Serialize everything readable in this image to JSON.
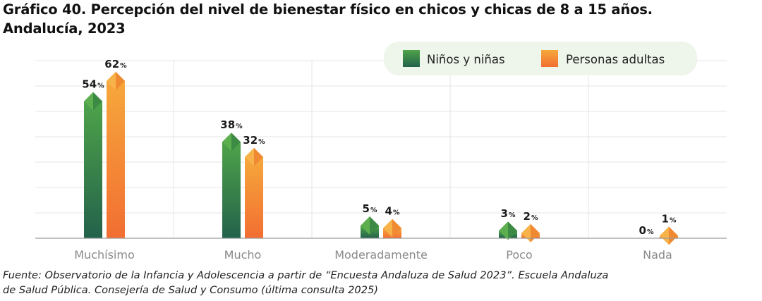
{
  "title": {
    "line1": "Gráfico 40. Percepción del nivel de bienestar físico en chicos y chicas de 8 a 15 años.",
    "line2": "Andalucía, 2023"
  },
  "source": {
    "line1": "Fuente: Observatorio de la Infancia y Adolescencia a partir de “Encuesta Andaluza de Salud 2023”. Escuela Andaluza",
    "line2": "de Salud Pública. Consejería de Salud y Consumo (última consulta 2025)"
  },
  "colors": {
    "series1_top": "#4fa34a",
    "series1_bottom": "#23624b",
    "series1_cap_light": "#5cae4f",
    "series1_cap_dark": "#3d8a44",
    "series2_top": "#f6a83c",
    "series2_bottom": "#f26e32",
    "series2_cap_light": "#f8b24a",
    "series2_cap_dark": "#ef8a33",
    "legend_bg": "#eef5ea",
    "grid": "#e6e6e6",
    "axis": "#9a9a9a",
    "tick_text": "#8a8a8a"
  },
  "chart_data": {
    "type": "bar",
    "title": "Gráfico 40. Percepción del nivel de bienestar físico en chicos y chicas de 8 a 15 años. Andalucía, 2023",
    "xlabel": "",
    "ylabel": "",
    "ylim": [
      0,
      70
    ],
    "grid": true,
    "legend_position": "top-right",
    "value_suffix": "%",
    "categories": [
      "Muchísimo",
      "Mucho",
      "Moderadamente",
      "Poco",
      "Nada"
    ],
    "series": [
      {
        "name": "Niños y niñas",
        "values": [
          54,
          38,
          5,
          3,
          0
        ]
      },
      {
        "name": "Personas adultas",
        "values": [
          62,
          32,
          4,
          2,
          1
        ]
      }
    ]
  }
}
